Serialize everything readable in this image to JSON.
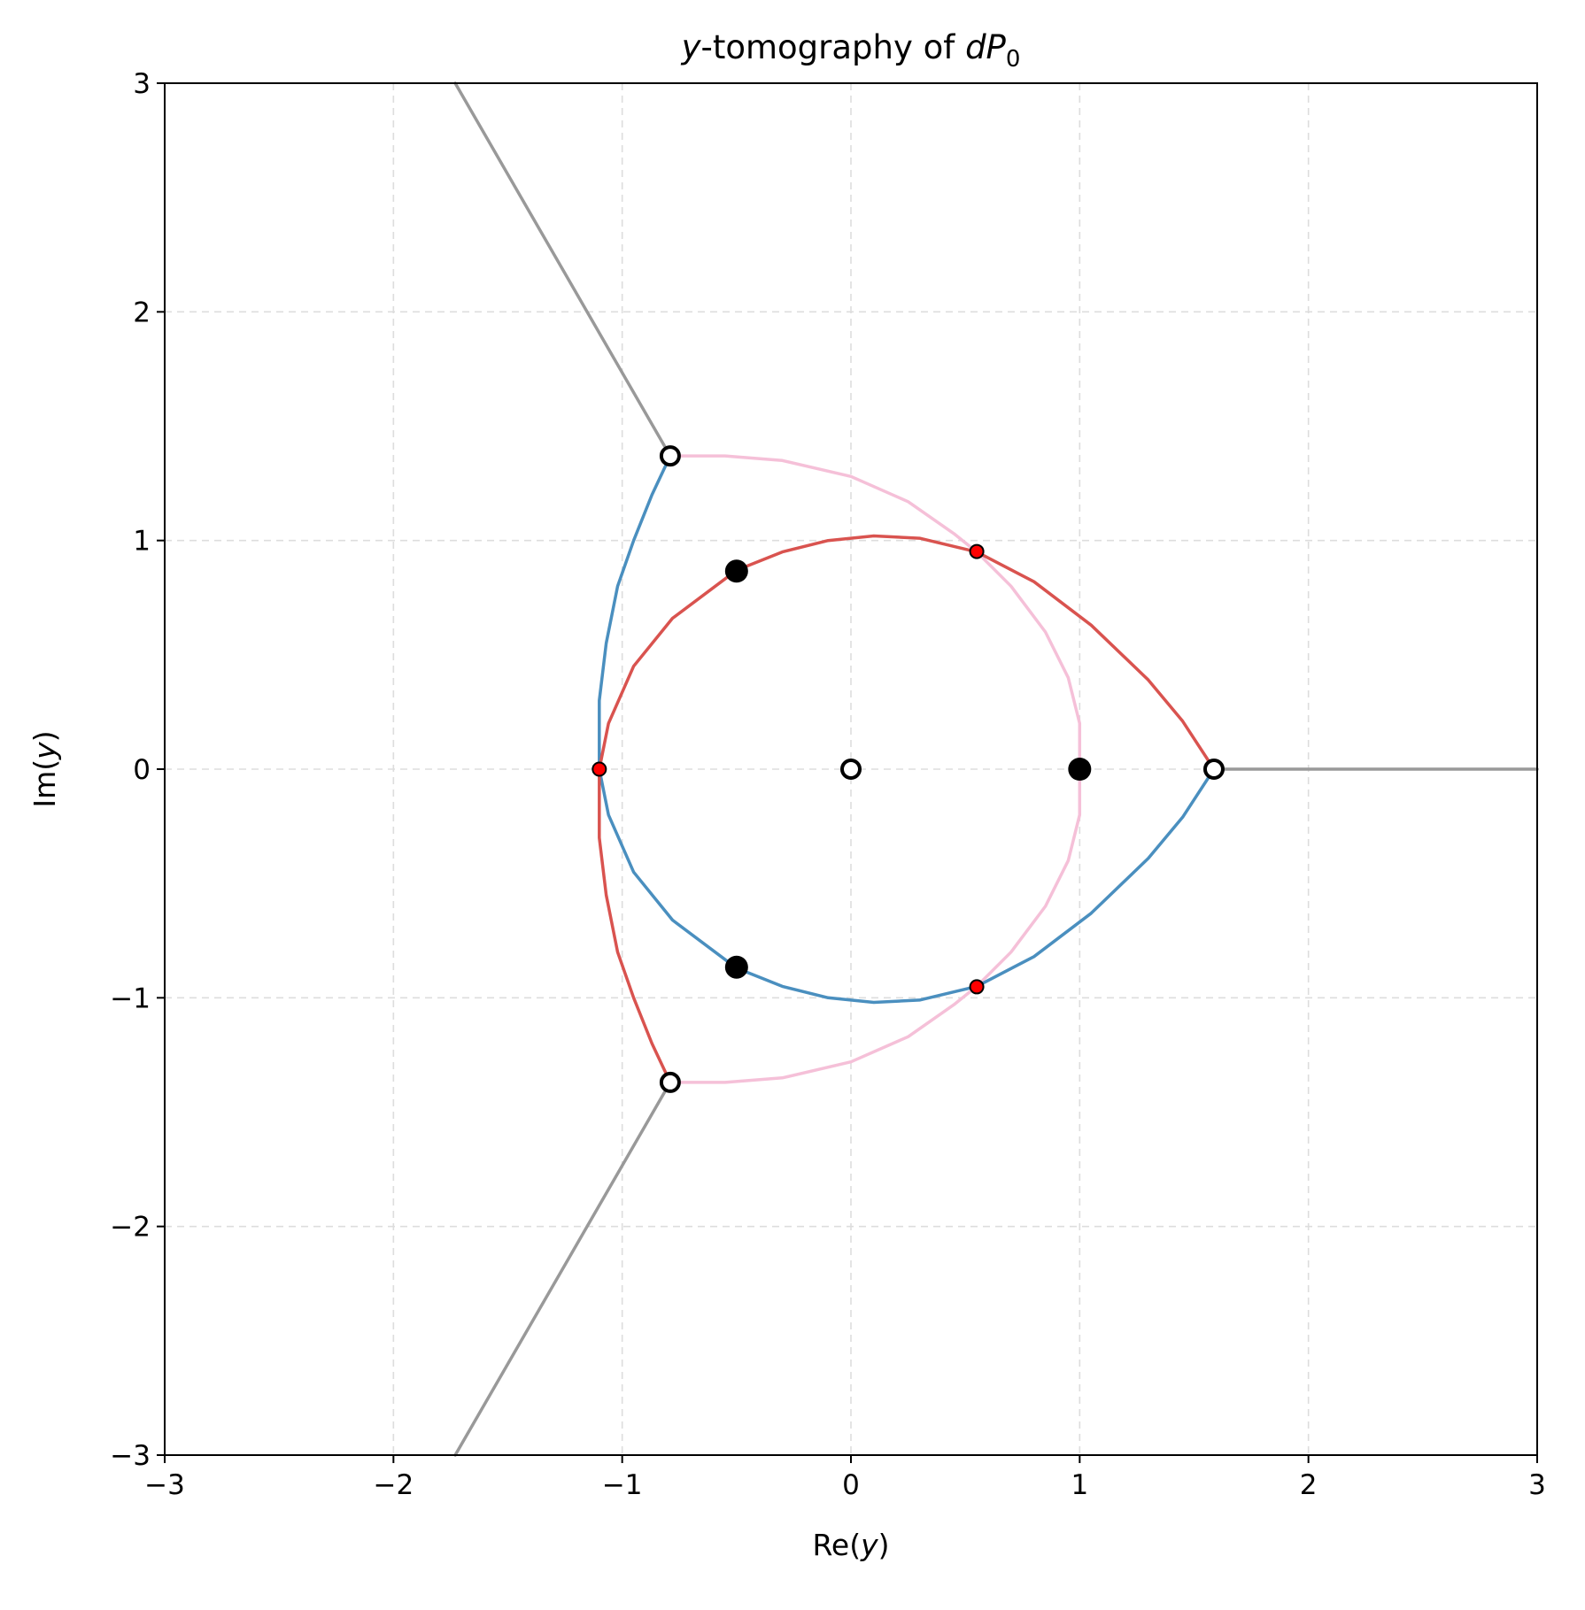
{
  "chart_data": {
    "type": "line",
    "title": {
      "var": "y",
      "middle": "-tomography of ",
      "italic_part": "dP",
      "subscript": "0"
    },
    "xlabel": {
      "prefix": "Re(",
      "var": "y",
      "suffix": ")"
    },
    "ylabel": {
      "prefix": "Im(",
      "var": "y",
      "suffix": ")"
    },
    "xlim": [
      -3,
      3
    ],
    "ylim": [
      -3,
      3
    ],
    "xticks": [
      -3,
      -2,
      -1,
      0,
      1,
      2,
      3
    ],
    "yticks": [
      -3,
      -2,
      -1,
      0,
      1,
      2,
      3
    ],
    "xtick_labels": [
      "−3",
      "−2",
      "−1",
      "0",
      "1",
      "2",
      "3"
    ],
    "ytick_labels": [
      "−3",
      "−2",
      "−1",
      "0",
      "1",
      "2",
      "3"
    ],
    "grid": true,
    "colors": {
      "gray": "#999999",
      "blue": "#4a8fbf",
      "red": "#d9534f",
      "pink": "#f5c0d8",
      "red_point": "#ff0000",
      "black": "#000000"
    },
    "series": [
      {
        "color": "gray",
        "points": [
          [
            -0.79,
            1.37
          ],
          [
            -1.73,
            3.0
          ]
        ]
      },
      {
        "color": "gray",
        "points": [
          [
            -0.79,
            -1.37
          ],
          [
            -1.73,
            -3.0
          ]
        ]
      },
      {
        "color": "gray",
        "points": [
          [
            1.587,
            0.0
          ],
          [
            3.0,
            0.0
          ]
        ]
      },
      {
        "color": "pink",
        "points": [
          [
            -0.79,
            1.37
          ],
          [
            -0.55,
            1.37
          ],
          [
            -0.3,
            1.35
          ],
          [
            0.0,
            1.28
          ],
          [
            0.25,
            1.17
          ],
          [
            0.45,
            1.03
          ],
          [
            0.55,
            0.95
          ],
          [
            0.7,
            0.8
          ],
          [
            0.85,
            0.6
          ],
          [
            0.95,
            0.4
          ],
          [
            1.0,
            0.2
          ],
          [
            1.0,
            0.0
          ],
          [
            1.0,
            -0.2
          ],
          [
            0.95,
            -0.4
          ],
          [
            0.85,
            -0.6
          ],
          [
            0.7,
            -0.8
          ],
          [
            0.55,
            -0.95
          ],
          [
            0.45,
            -1.03
          ],
          [
            0.25,
            -1.17
          ],
          [
            0.0,
            -1.28
          ],
          [
            -0.3,
            -1.35
          ],
          [
            -0.55,
            -1.37
          ],
          [
            -0.79,
            -1.37
          ]
        ]
      },
      {
        "color": "blue",
        "points": [
          [
            -0.79,
            1.37
          ],
          [
            -0.87,
            1.2
          ],
          [
            -0.95,
            1.0
          ],
          [
            -1.02,
            0.8
          ],
          [
            -1.07,
            0.55
          ],
          [
            -1.1,
            0.3
          ],
          [
            -1.1,
            0.1
          ],
          [
            -1.1,
            0.0
          ],
          [
            -1.06,
            -0.2
          ],
          [
            -0.95,
            -0.45
          ],
          [
            -0.78,
            -0.66
          ],
          [
            -0.5,
            -0.87
          ],
          [
            -0.3,
            -0.95
          ],
          [
            -0.1,
            -1.0
          ],
          [
            0.1,
            -1.02
          ],
          [
            0.3,
            -1.01
          ],
          [
            0.55,
            -0.95
          ],
          [
            0.8,
            -0.82
          ],
          [
            1.05,
            -0.63
          ],
          [
            1.3,
            -0.39
          ],
          [
            1.45,
            -0.21
          ],
          [
            1.587,
            0.0
          ]
        ]
      },
      {
        "color": "red",
        "points": [
          [
            -1.1,
            0.0
          ],
          [
            -1.06,
            0.2
          ],
          [
            -0.95,
            0.45
          ],
          [
            -0.78,
            0.66
          ],
          [
            -0.5,
            0.87
          ],
          [
            -0.3,
            0.95
          ],
          [
            -0.1,
            1.0
          ],
          [
            0.1,
            1.02
          ],
          [
            0.3,
            1.01
          ],
          [
            0.55,
            0.95
          ],
          [
            0.8,
            0.82
          ],
          [
            1.05,
            0.63
          ],
          [
            1.3,
            0.39
          ],
          [
            1.45,
            0.21
          ],
          [
            1.587,
            0.0
          ]
        ]
      },
      {
        "color": "red",
        "points": [
          [
            -1.1,
            0.0
          ],
          [
            -1.1,
            -0.1
          ],
          [
            -1.1,
            -0.3
          ],
          [
            -1.07,
            -0.55
          ],
          [
            -1.02,
            -0.8
          ],
          [
            -0.95,
            -1.0
          ],
          [
            -0.87,
            -1.2
          ],
          [
            -0.79,
            -1.37
          ]
        ]
      }
    ],
    "markers": [
      {
        "kind": "open",
        "x": 0.0,
        "y": 0.0
      },
      {
        "kind": "open",
        "x": -0.79,
        "y": 1.37
      },
      {
        "kind": "open",
        "x": -0.79,
        "y": -1.37
      },
      {
        "kind": "open",
        "x": 1.587,
        "y": 0.0
      },
      {
        "kind": "filled-black",
        "x": -0.5,
        "y": 0.866
      },
      {
        "kind": "filled-black",
        "x": -0.5,
        "y": -0.866
      },
      {
        "kind": "filled-black",
        "x": 1.0,
        "y": 0.0
      },
      {
        "kind": "filled-red",
        "x": -1.1,
        "y": 0.0
      },
      {
        "kind": "filled-red",
        "x": 0.55,
        "y": 0.952
      },
      {
        "kind": "filled-red",
        "x": 0.55,
        "y": -0.952
      }
    ]
  }
}
